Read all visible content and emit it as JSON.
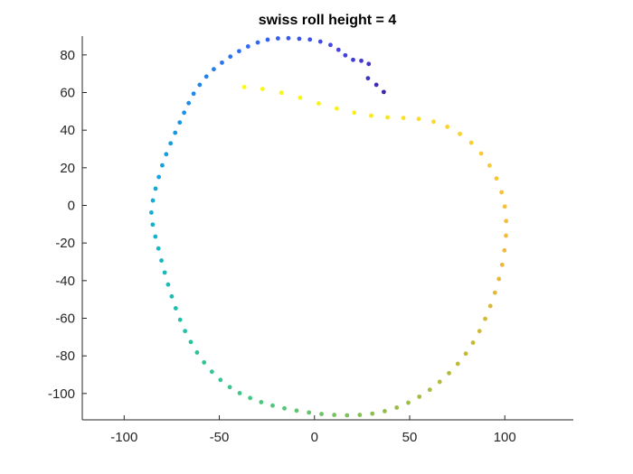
{
  "chart_data": {
    "type": "scatter",
    "title": "swiss roll height = 4",
    "xlabel": "",
    "ylabel": "",
    "xlim": [
      -122,
      136
    ],
    "ylim": [
      -114,
      90
    ],
    "x_ticks": [
      -100,
      -50,
      0,
      50,
      100
    ],
    "y_ticks": [
      -100,
      -80,
      -60,
      -40,
      -20,
      0,
      20,
      40,
      60,
      80
    ],
    "x_tick_labels": [
      "-100",
      "-50",
      "0",
      "50",
      "100"
    ],
    "y_tick_labels": [
      "-100",
      "-80",
      "-60",
      "-40",
      "-20",
      "0",
      "20",
      "40",
      "60",
      "80"
    ],
    "grid": false,
    "legend": false,
    "colormap": "parula",
    "colormap_stops": [
      "#3e26a8",
      "#4443e0",
      "#2f6cf4",
      "#1b91e6",
      "#12b0d0",
      "#25c0a6",
      "#44c783",
      "#8ac04f",
      "#c2b834",
      "#f5ba3c",
      "#f9d42e",
      "#f9fb15"
    ],
    "series": [
      {
        "color_param": "t",
        "points": [
          {
            "x": 36.4,
            "y": 60.3,
            "t": 0.0
          },
          {
            "x": 32.5,
            "y": 64.1,
            "t": 0.02
          },
          {
            "x": 28.1,
            "y": 67.6,
            "t": 0.04
          },
          {
            "x": 28.5,
            "y": 75.2,
            "t": 0.05
          },
          {
            "x": 24.6,
            "y": 76.9,
            "t": 0.06
          },
          {
            "x": 20.3,
            "y": 77.4,
            "t": 0.07
          },
          {
            "x": 16.2,
            "y": 79.8,
            "t": 0.08
          },
          {
            "x": 12.6,
            "y": 82.7,
            "t": 0.09
          },
          {
            "x": 8.4,
            "y": 85.3,
            "t": 0.1
          },
          {
            "x": 3.1,
            "y": 87.1,
            "t": 0.11
          },
          {
            "x": -2.4,
            "y": 88.2,
            "t": 0.12
          },
          {
            "x": -8.0,
            "y": 88.6,
            "t": 0.13
          },
          {
            "x": -13.7,
            "y": 88.9,
            "t": 0.14
          },
          {
            "x": -19.2,
            "y": 88.8,
            "t": 0.15
          },
          {
            "x": -24.6,
            "y": 88.1,
            "t": 0.16
          },
          {
            "x": -29.8,
            "y": 86.6,
            "t": 0.17
          },
          {
            "x": -34.9,
            "y": 84.5,
            "t": 0.18
          },
          {
            "x": -39.6,
            "y": 82.0,
            "t": 0.19
          },
          {
            "x": -44.2,
            "y": 79.1,
            "t": 0.2
          },
          {
            "x": -48.6,
            "y": 75.9,
            "t": 0.21
          },
          {
            "x": -52.9,
            "y": 72.4,
            "t": 0.22
          },
          {
            "x": -56.8,
            "y": 68.5,
            "t": 0.23
          },
          {
            "x": -60.3,
            "y": 64.1,
            "t": 0.24
          },
          {
            "x": -63.5,
            "y": 59.4,
            "t": 0.25
          },
          {
            "x": -66.1,
            "y": 54.4,
            "t": 0.26
          },
          {
            "x": -68.5,
            "y": 49.3,
            "t": 0.27
          },
          {
            "x": -70.8,
            "y": 44.1,
            "t": 0.28
          },
          {
            "x": -73.2,
            "y": 38.6,
            "t": 0.29
          },
          {
            "x": -75.6,
            "y": 33.0,
            "t": 0.3
          },
          {
            "x": -77.9,
            "y": 27.2,
            "t": 0.31
          },
          {
            "x": -80.0,
            "y": 21.3,
            "t": 0.32
          },
          {
            "x": -81.8,
            "y": 15.1,
            "t": 0.33
          },
          {
            "x": -83.5,
            "y": 8.9,
            "t": 0.34
          },
          {
            "x": -84.9,
            "y": 2.6,
            "t": 0.35
          },
          {
            "x": -85.7,
            "y": -3.8,
            "t": 0.36
          },
          {
            "x": -85.0,
            "y": -10.2,
            "t": 0.37
          },
          {
            "x": -83.6,
            "y": -16.6,
            "t": 0.38
          },
          {
            "x": -82.0,
            "y": -22.9,
            "t": 0.39
          },
          {
            "x": -80.4,
            "y": -29.3,
            "t": 0.4
          },
          {
            "x": -78.7,
            "y": -35.7,
            "t": 0.41
          },
          {
            "x": -76.9,
            "y": -42.1,
            "t": 0.42
          },
          {
            "x": -75.0,
            "y": -48.4,
            "t": 0.43
          },
          {
            "x": -72.9,
            "y": -54.7,
            "t": 0.44
          },
          {
            "x": -70.6,
            "y": -60.8,
            "t": 0.45
          },
          {
            "x": -68.0,
            "y": -66.8,
            "t": 0.46
          },
          {
            "x": -65.0,
            "y": -72.6,
            "t": 0.47
          },
          {
            "x": -61.7,
            "y": -78.2,
            "t": 0.48
          },
          {
            "x": -58.0,
            "y": -83.5,
            "t": 0.49
          },
          {
            "x": -53.9,
            "y": -88.4,
            "t": 0.5
          },
          {
            "x": -49.4,
            "y": -92.8,
            "t": 0.51
          },
          {
            "x": -44.5,
            "y": -96.6,
            "t": 0.52
          },
          {
            "x": -39.3,
            "y": -99.8,
            "t": 0.53
          },
          {
            "x": -33.8,
            "y": -102.4,
            "t": 0.54
          },
          {
            "x": -28.0,
            "y": -104.6,
            "t": 0.55
          },
          {
            "x": -22.0,
            "y": -106.4,
            "t": 0.56
          },
          {
            "x": -15.8,
            "y": -107.9,
            "t": 0.57
          },
          {
            "x": -9.4,
            "y": -109.1,
            "t": 0.58
          },
          {
            "x": -2.9,
            "y": -110.1,
            "t": 0.59
          },
          {
            "x": 3.7,
            "y": -110.9,
            "t": 0.6
          },
          {
            "x": 10.4,
            "y": -111.4,
            "t": 0.61
          },
          {
            "x": 17.1,
            "y": -111.6,
            "t": 0.62
          },
          {
            "x": 23.8,
            "y": -111.4,
            "t": 0.63
          },
          {
            "x": 30.4,
            "y": -110.7,
            "t": 0.64
          },
          {
            "x": 36.9,
            "y": -109.4,
            "t": 0.65
          },
          {
            "x": 43.2,
            "y": -107.5,
            "t": 0.66
          },
          {
            "x": 49.3,
            "y": -104.9,
            "t": 0.67
          },
          {
            "x": 55.1,
            "y": -101.7,
            "t": 0.68
          },
          {
            "x": 60.6,
            "y": -98.0,
            "t": 0.69
          },
          {
            "x": 65.8,
            "y": -93.8,
            "t": 0.7
          },
          {
            "x": 70.7,
            "y": -89.2,
            "t": 0.71
          },
          {
            "x": 75.3,
            "y": -84.2,
            "t": 0.72
          },
          {
            "x": 79.5,
            "y": -78.8,
            "t": 0.73
          },
          {
            "x": 83.3,
            "y": -73.0,
            "t": 0.74
          },
          {
            "x": 86.7,
            "y": -66.8,
            "t": 0.75
          },
          {
            "x": 89.7,
            "y": -60.3,
            "t": 0.76
          },
          {
            "x": 92.4,
            "y": -53.5,
            "t": 0.77
          },
          {
            "x": 94.8,
            "y": -46.4,
            "t": 0.78
          },
          {
            "x": 96.9,
            "y": -39.1,
            "t": 0.79
          },
          {
            "x": 98.6,
            "y": -31.6,
            "t": 0.8
          },
          {
            "x": 99.8,
            "y": -23.9,
            "t": 0.81
          },
          {
            "x": 100.6,
            "y": -16.1,
            "t": 0.82
          },
          {
            "x": 100.7,
            "y": -8.3,
            "t": 0.83
          },
          {
            "x": 100.0,
            "y": -0.6,
            "t": 0.84
          },
          {
            "x": 98.3,
            "y": 7.0,
            "t": 0.85
          },
          {
            "x": 95.6,
            "y": 14.3,
            "t": 0.86
          },
          {
            "x": 92.0,
            "y": 21.2,
            "t": 0.87
          },
          {
            "x": 87.6,
            "y": 27.6,
            "t": 0.88
          },
          {
            "x": 82.4,
            "y": 33.3,
            "t": 0.89
          },
          {
            "x": 76.4,
            "y": 38.0,
            "t": 0.9
          },
          {
            "x": 69.8,
            "y": 41.8,
            "t": 0.91
          },
          {
            "x": 62.6,
            "y": 44.5,
            "t": 0.92
          },
          {
            "x": 54.8,
            "y": 46.0,
            "t": 0.93
          },
          {
            "x": 46.7,
            "y": 46.5,
            "t": 0.94
          },
          {
            "x": 38.4,
            "y": 46.8,
            "t": 0.95
          },
          {
            "x": 29.8,
            "y": 47.7,
            "t": 0.96
          },
          {
            "x": 20.9,
            "y": 49.3,
            "t": 0.97
          },
          {
            "x": 11.7,
            "y": 51.5,
            "t": 0.975
          },
          {
            "x": 2.2,
            "y": 54.2,
            "t": 0.98
          },
          {
            "x": -7.5,
            "y": 57.2,
            "t": 0.985
          },
          {
            "x": -17.4,
            "y": 59.9,
            "t": 0.99
          },
          {
            "x": -27.3,
            "y": 61.9,
            "t": 0.995
          },
          {
            "x": -36.9,
            "y": 62.9,
            "t": 1.0
          }
        ]
      }
    ]
  }
}
